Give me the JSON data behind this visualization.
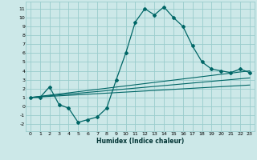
{
  "title": "",
  "xlabel": "Humidex (Indice chaleur)",
  "ylabel": "",
  "bg_color": "#cce8e8",
  "grid_color": "#99cccc",
  "line_color": "#006666",
  "xlim": [
    -0.5,
    23.5
  ],
  "ylim": [
    -2.8,
    11.8
  ],
  "xticks": [
    0,
    1,
    2,
    3,
    4,
    5,
    6,
    7,
    8,
    9,
    10,
    11,
    12,
    13,
    14,
    15,
    16,
    17,
    18,
    19,
    20,
    21,
    22,
    23
  ],
  "yticks": [
    -2,
    -1,
    0,
    1,
    2,
    3,
    4,
    5,
    6,
    7,
    8,
    9,
    10,
    11
  ],
  "curve1_x": [
    0,
    1,
    2,
    3,
    4,
    5,
    6,
    7,
    8,
    9,
    10,
    11,
    12,
    13,
    14,
    15,
    16,
    17,
    18,
    19,
    20,
    21,
    22,
    23
  ],
  "curve1_y": [
    1.0,
    1.0,
    2.2,
    0.2,
    -0.2,
    -1.8,
    -1.5,
    -1.2,
    -0.2,
    3.0,
    6.0,
    9.5,
    11.0,
    10.3,
    11.2,
    10.0,
    9.0,
    6.8,
    5.0,
    4.2,
    4.0,
    3.8,
    4.2,
    3.8
  ],
  "curve2_x": [
    0,
    23
  ],
  "curve2_y": [
    1.0,
    3.2
  ],
  "curve3_x": [
    0,
    23
  ],
  "curve3_y": [
    1.0,
    4.0
  ],
  "curve4_x": [
    0,
    23
  ],
  "curve4_y": [
    1.0,
    2.4
  ],
  "tick_fontsize": 4.5,
  "xlabel_fontsize": 5.5
}
